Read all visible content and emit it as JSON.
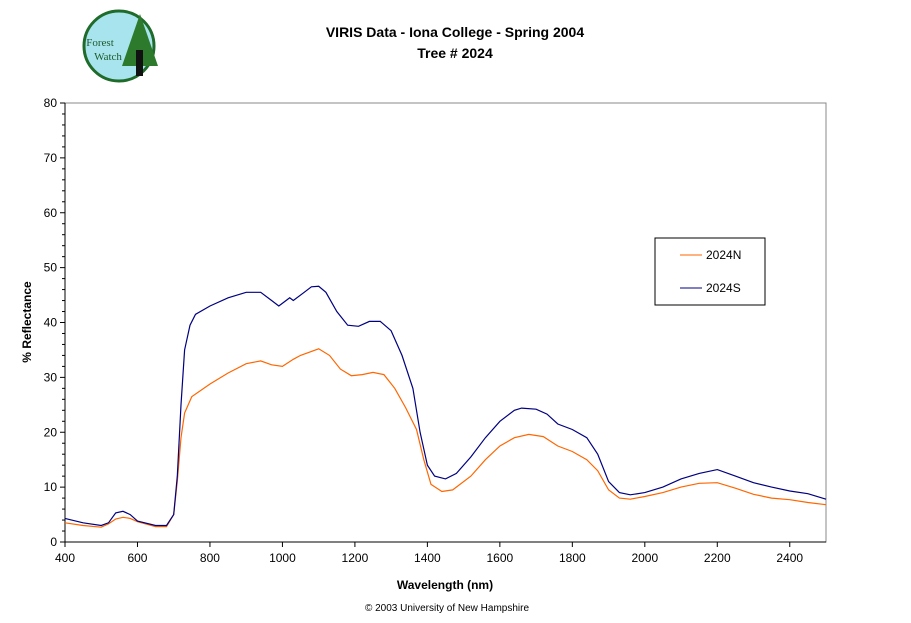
{
  "logo": {
    "text": "Forest Watch",
    "colors": {
      "bg": "#a8e4ee",
      "border": "#1e6b2a",
      "text": "#1e5a2a"
    }
  },
  "footer": "© 2003 University of New Hampshire",
  "chart_data": {
    "type": "line",
    "title": "VIRIS Data - Iona College - Spring 2004",
    "subtitle": "Tree # 2024",
    "xlabel": "Wavelength (nm)",
    "ylabel": "% Reflectance",
    "xlim": [
      400,
      2500
    ],
    "ylim": [
      0,
      80
    ],
    "xticks": [
      400,
      600,
      800,
      1000,
      1200,
      1400,
      1600,
      1800,
      2000,
      2200,
      2400
    ],
    "yticks": [
      0,
      10,
      20,
      30,
      40,
      50,
      60,
      70,
      80
    ],
    "grid": false,
    "legend_position": "right",
    "series": [
      {
        "name": "2024N",
        "color": "#ff6600",
        "x": [
          400,
          450,
          500,
          520,
          540,
          560,
          580,
          600,
          650,
          680,
          700,
          710,
          720,
          730,
          750,
          800,
          850,
          900,
          940,
          970,
          1000,
          1030,
          1050,
          1100,
          1130,
          1160,
          1190,
          1220,
          1250,
          1280,
          1310,
          1340,
          1370,
          1390,
          1410,
          1440,
          1470,
          1520,
          1560,
          1600,
          1640,
          1680,
          1720,
          1760,
          1800,
          1840,
          1870,
          1900,
          1930,
          1960,
          2000,
          2050,
          2100,
          2150,
          2200,
          2250,
          2300,
          2350,
          2400,
          2450,
          2500
        ],
        "y": [
          3.5,
          3.0,
          2.7,
          3.3,
          4.2,
          4.5,
          4.3,
          3.7,
          2.8,
          2.8,
          5,
          11,
          19,
          23.5,
          26.5,
          28.8,
          30.8,
          32.5,
          33,
          32.3,
          32,
          33.3,
          34,
          35.2,
          34,
          31.5,
          30.3,
          30.5,
          30.9,
          30.5,
          28,
          24.5,
          20.5,
          15,
          10.5,
          9.2,
          9.5,
          12,
          15,
          17.5,
          19,
          19.6,
          19.2,
          17.5,
          16.5,
          15,
          13,
          9.5,
          8,
          7.8,
          8.3,
          9,
          10,
          10.7,
          10.8,
          9.8,
          8.7,
          8,
          7.7,
          7.2,
          6.8
        ]
      },
      {
        "name": "2024S",
        "color": "#000080",
        "x": [
          400,
          450,
          500,
          520,
          540,
          560,
          580,
          600,
          650,
          680,
          700,
          710,
          720,
          730,
          745,
          760,
          800,
          850,
          900,
          940,
          970,
          990,
          1010,
          1020,
          1030,
          1060,
          1080,
          1100,
          1120,
          1150,
          1180,
          1210,
          1240,
          1270,
          1300,
          1330,
          1360,
          1380,
          1400,
          1420,
          1450,
          1480,
          1520,
          1560,
          1600,
          1640,
          1660,
          1700,
          1730,
          1760,
          1800,
          1840,
          1870,
          1900,
          1930,
          1960,
          2000,
          2050,
          2100,
          2150,
          2200,
          2250,
          2300,
          2350,
          2400,
          2450,
          2500
        ],
        "y": [
          4.3,
          3.5,
          3.0,
          3.5,
          5.3,
          5.6,
          5.0,
          3.8,
          3.0,
          3.0,
          5,
          12,
          25,
          35,
          39.5,
          41.5,
          43,
          44.5,
          45.5,
          45.5,
          44,
          43,
          44,
          44.5,
          44,
          45.5,
          46.5,
          46.6,
          45.5,
          42,
          39.5,
          39.3,
          40.2,
          40.2,
          38.5,
          34,
          28,
          20,
          14,
          12,
          11.5,
          12.5,
          15.5,
          19,
          22,
          24,
          24.4,
          24.2,
          23.3,
          21.5,
          20.5,
          19,
          16,
          11,
          9,
          8.6,
          9,
          10,
          11.5,
          12.5,
          13.2,
          12,
          10.8,
          10,
          9.3,
          8.8,
          7.8
        ]
      }
    ]
  }
}
